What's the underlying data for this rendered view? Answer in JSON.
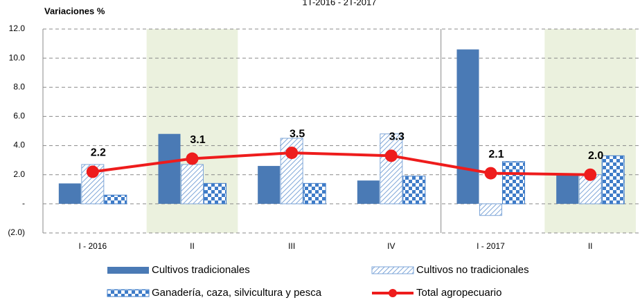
{
  "chart_data": {
    "type": "bar_line",
    "title": "1T-2016 - 2T-2017",
    "y_axis_label": "Variaciones %",
    "categories": [
      "I - 2016",
      "II",
      "III",
      "IV",
      "I - 2017",
      "II"
    ],
    "highlighted_categories": [
      1,
      5
    ],
    "series": [
      {
        "name": "Cultivos tradicionales",
        "type": "bar",
        "color": "#4a7ab5",
        "values": [
          1.4,
          4.8,
          2.6,
          1.6,
          10.6,
          2.0
        ]
      },
      {
        "name": "Cultivos no tradicionales",
        "type": "bar",
        "pattern": "hatch",
        "color": "#7ea6d8",
        "values": [
          2.7,
          2.7,
          4.5,
          4.8,
          -0.8,
          2.0
        ]
      },
      {
        "name": "Ganadería, caza, silvicultura y pesca",
        "type": "bar",
        "pattern": "checker",
        "color": "#3f7cc8",
        "values": [
          0.6,
          1.4,
          1.4,
          1.9,
          2.9,
          3.3
        ]
      },
      {
        "name": "Total agropecuario",
        "type": "line",
        "color": "#ee1c1c",
        "values": [
          2.2,
          3.1,
          3.5,
          3.3,
          2.1,
          2.0
        ],
        "value_labels": [
          "2.2",
          "3.1",
          "3.5",
          "3.3",
          "2.1",
          "2.0"
        ]
      }
    ],
    "ylim": [
      -2,
      12
    ],
    "yticks": [
      {
        "value": -2,
        "label": "(2.0)"
      },
      {
        "value": 0,
        "label": "-"
      },
      {
        "value": 2,
        "label": "2.0"
      },
      {
        "value": 4,
        "label": "4.0"
      },
      {
        "value": 6,
        "label": "6.0"
      },
      {
        "value": 8,
        "label": "8.0"
      },
      {
        "value": 10,
        "label": "10.0"
      },
      {
        "value": 12,
        "label": "12.0"
      }
    ],
    "grid": true
  }
}
